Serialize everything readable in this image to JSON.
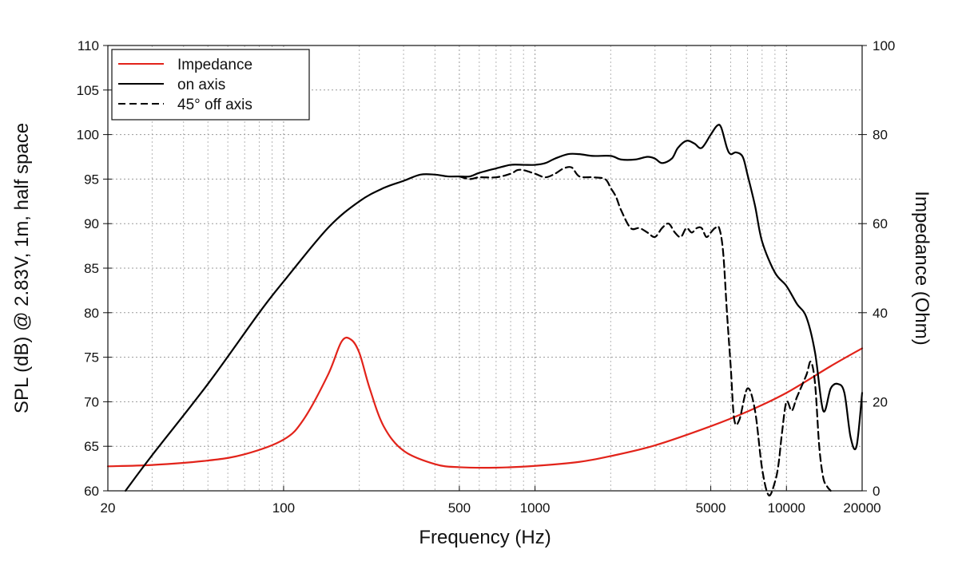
{
  "chart_data": {
    "type": "line",
    "xlabel": "Frequency (Hz)",
    "ylabel": "SPL (dB) @ 2.83V, 1m, half space",
    "y2label": "Impedance (Ohm)",
    "xscale": "log",
    "xlim": [
      20,
      20000
    ],
    "ylim": [
      60,
      110
    ],
    "y2lim": [
      0,
      100
    ],
    "x_ticks": [
      {
        "value": 20,
        "label": "20"
      },
      {
        "value": 100,
        "label": "100"
      },
      {
        "value": 500,
        "label": "500"
      },
      {
        "value": 1000,
        "label": "1000"
      },
      {
        "value": 5000,
        "label": "5000"
      },
      {
        "value": 10000,
        "label": "10000"
      },
      {
        "value": 20000,
        "label": "20000"
      }
    ],
    "x_minor_grid": [
      30,
      40,
      50,
      60,
      70,
      80,
      90,
      200,
      300,
      400,
      600,
      700,
      800,
      900,
      2000,
      3000,
      4000,
      6000,
      7000,
      8000,
      9000
    ],
    "y_ticks": [
      {
        "value": 60,
        "label": "60"
      },
      {
        "value": 65,
        "label": "65"
      },
      {
        "value": 70,
        "label": "70"
      },
      {
        "value": 75,
        "label": "75"
      },
      {
        "value": 80,
        "label": "80"
      },
      {
        "value": 85,
        "label": "85"
      },
      {
        "value": 90,
        "label": "90"
      },
      {
        "value": 95,
        "label": "95"
      },
      {
        "value": 100,
        "label": "100"
      },
      {
        "value": 105,
        "label": "105"
      },
      {
        "value": 110,
        "label": "110"
      }
    ],
    "y2_ticks": [
      {
        "value": 0,
        "label": "0"
      },
      {
        "value": 20,
        "label": "20"
      },
      {
        "value": 40,
        "label": "40"
      },
      {
        "value": 60,
        "label": "60"
      },
      {
        "value": 80,
        "label": "80"
      },
      {
        "value": 100,
        "label": "100"
      }
    ],
    "legend_position": "top-left",
    "series": [
      {
        "name": "Impedance",
        "axis": "right",
        "color": "#e2231a",
        "dash": "solid",
        "x": [
          20,
          30,
          50,
          70,
          100,
          120,
          150,
          170,
          185,
          200,
          220,
          250,
          300,
          400,
          500,
          700,
          1000,
          1500,
          2000,
          3000,
          5000,
          7000,
          10000,
          15000,
          20000
        ],
        "y": [
          5.5,
          5.8,
          6.8,
          8.2,
          11.5,
          16,
          26,
          33.5,
          34,
          31,
          23,
          14.5,
          9,
          6,
          5.3,
          5.2,
          5.6,
          6.5,
          7.8,
          10.2,
          14.5,
          17.8,
          22,
          28,
          32
        ]
      },
      {
        "name": "on axis",
        "axis": "left",
        "color": "#000000",
        "dash": "solid",
        "x": [
          23.5,
          30,
          50,
          80,
          100,
          150,
          200,
          250,
          300,
          350,
          400,
          450,
          500,
          550,
          600,
          700,
          800,
          900,
          1000,
          1100,
          1200,
          1350,
          1500,
          1700,
          2000,
          2200,
          2500,
          2800,
          3000,
          3200,
          3500,
          3700,
          4000,
          4300,
          4600,
          5000,
          5300,
          5500,
          5800,
          6000,
          6300,
          6700,
          7000,
          7500,
          8000,
          9000,
          10000,
          11000,
          12000,
          13000,
          14000,
          15000,
          16000,
          17000,
          18000,
          19000,
          20000
        ],
        "y": [
          60,
          64,
          72,
          80,
          83.5,
          89.5,
          92.5,
          94,
          94.8,
          95.5,
          95.5,
          95.3,
          95.3,
          95.3,
          95.7,
          96.2,
          96.6,
          96.6,
          96.6,
          96.8,
          97.3,
          97.8,
          97.8,
          97.6,
          97.6,
          97.2,
          97.2,
          97.5,
          97.3,
          96.8,
          97.3,
          98.5,
          99.3,
          99,
          98.5,
          100,
          101,
          100.8,
          98.5,
          97.8,
          98,
          97.5,
          95.5,
          92,
          88,
          84.5,
          83,
          81,
          79.5,
          75.5,
          69,
          71.5,
          72,
          71,
          66,
          65,
          71
        ]
      },
      {
        "name": "45° off axis",
        "axis": "left",
        "color": "#000000",
        "dash": "dashed",
        "x": [
          500,
          550,
          600,
          700,
          800,
          850,
          900,
          1000,
          1100,
          1200,
          1300,
          1400,
          1500,
          1700,
          1900,
          2000,
          2100,
          2200,
          2400,
          2600,
          2800,
          3000,
          3200,
          3400,
          3600,
          3800,
          4000,
          4200,
          4400,
          4600,
          4800,
          5000,
          5200,
          5400,
          5600,
          5800,
          6000,
          6200,
          6500,
          7000,
          7500,
          8000,
          8500,
          9000,
          9300,
          9600,
          10000,
          10500,
          11000,
          12000,
          12500,
          13000,
          13500,
          14000,
          14500,
          15000
        ],
        "y": [
          95.3,
          95,
          95.2,
          95.2,
          95.6,
          96,
          96,
          95.6,
          95.2,
          95.6,
          96.2,
          96.3,
          95.3,
          95.2,
          95,
          94,
          93,
          91.5,
          89.5,
          89.5,
          89,
          88.5,
          89.5,
          90,
          89,
          88.5,
          89.5,
          89,
          89.5,
          89.5,
          88.5,
          89,
          89.5,
          89.5,
          86.8,
          80,
          74,
          68,
          68,
          71.5,
          69,
          62.5,
          59.5,
          61,
          63,
          66.5,
          70,
          69,
          70.5,
          73,
          74.5,
          72,
          65,
          61.5,
          60.5,
          60
        ]
      }
    ]
  }
}
